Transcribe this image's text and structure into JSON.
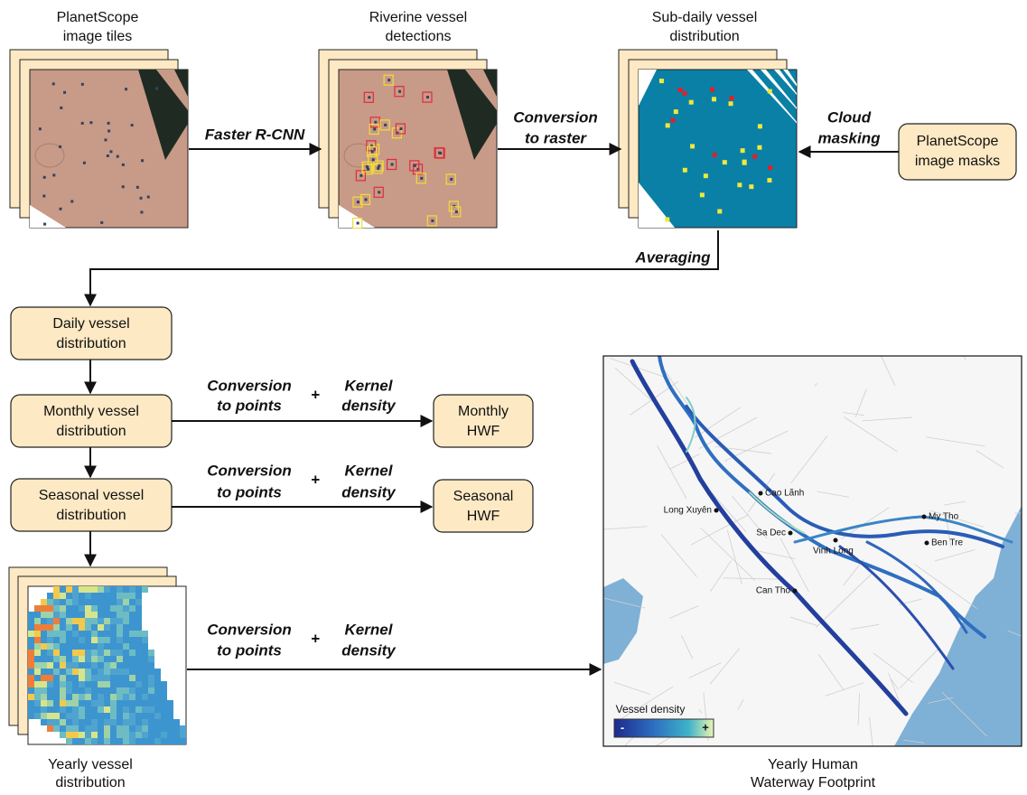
{
  "image_labels": {
    "tiles": [
      "PlanetScope",
      "image tiles"
    ],
    "detections": [
      "Riverine vessel",
      "detections"
    ],
    "subdaily": [
      "Sub-daily vessel",
      "distribution"
    ],
    "yearly": [
      "Yearly vessel",
      "distribution"
    ]
  },
  "steps": {
    "faster_rcnn": "Faster R-CNN",
    "conversion_to_raster": [
      "Conversion",
      "to raster"
    ],
    "cloud_masking": [
      "Cloud",
      "masking"
    ],
    "averaging": "Averaging"
  },
  "boxes": {
    "image_masks": [
      "PlanetScope",
      "image masks"
    ],
    "daily": [
      "Daily vessel",
      "distribution"
    ],
    "monthly": [
      "Monthly vessel",
      "distribution"
    ],
    "seasonal": [
      "Seasonal vessel",
      "distribution"
    ],
    "monthly_hwf": [
      "Monthly",
      "HWF"
    ],
    "seasonal_hwf": [
      "Seasonal",
      "HWF"
    ]
  },
  "operations": [
    {
      "left": [
        "Conversion",
        "to points"
      ],
      "plus": "+",
      "right": [
        "Kernel",
        "density"
      ]
    },
    {
      "left": [
        "Conversion",
        "to points"
      ],
      "plus": "+",
      "right": [
        "Kernel",
        "density"
      ]
    },
    {
      "left": [
        "Conversion",
        "to points"
      ],
      "plus": "+",
      "right": [
        "Kernel",
        "density"
      ]
    }
  ],
  "map": {
    "cities": [
      "Cao Lãnh",
      "Long Xuyên",
      "Sa Dec",
      "Vinh Long",
      "My Tho",
      "Ben Tre",
      "Can Tho"
    ],
    "legend_title": "Vessel density",
    "legend_min": "-",
    "legend_max": "+",
    "caption": [
      "Yearly Human",
      "Waterway Footprint"
    ]
  }
}
